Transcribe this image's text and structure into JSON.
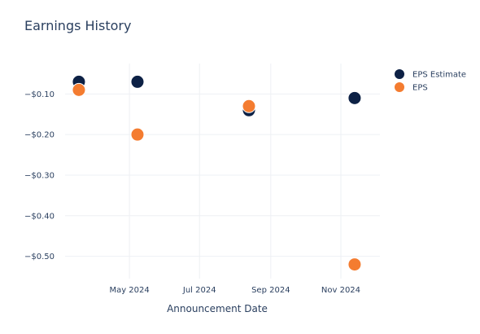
{
  "chart_data": {
    "type": "scatter",
    "title": "Earnings History",
    "xlabel": "Announcement Date",
    "ylabel": "",
    "x_tick_labels": [
      "May 2024",
      "Jul 2024",
      "Sep 2024",
      "Nov 2024"
    ],
    "x_ticks": [
      "2024-05-01",
      "2024-07-01",
      "2024-09-01",
      "2024-11-01"
    ],
    "y_tick_labels": [
      "−$0.10",
      "−$0.20",
      "−$0.30",
      "−$0.40",
      "−$0.50"
    ],
    "y_ticks": [
      -0.1,
      -0.2,
      -0.3,
      -0.4,
      -0.5
    ],
    "xlim": [
      "2024-03-06",
      "2024-12-05"
    ],
    "ylim": [
      -0.555,
      -0.025
    ],
    "grid": true,
    "legend_position": "top-right",
    "series": [
      {
        "name": "EPS Estimate",
        "color": "#0d2145",
        "points": [
          {
            "x": "2024-03-18",
            "y": -0.07
          },
          {
            "x": "2024-05-08",
            "y": -0.07
          },
          {
            "x": "2024-08-13",
            "y": -0.14
          },
          {
            "x": "2024-11-13",
            "y": -0.11
          }
        ]
      },
      {
        "name": "EPS",
        "color": "#f47c30",
        "points": [
          {
            "x": "2024-03-18",
            "y": -0.09
          },
          {
            "x": "2024-05-08",
            "y": -0.2
          },
          {
            "x": "2024-08-13",
            "y": -0.13
          },
          {
            "x": "2024-11-13",
            "y": -0.52
          }
        ]
      }
    ]
  }
}
